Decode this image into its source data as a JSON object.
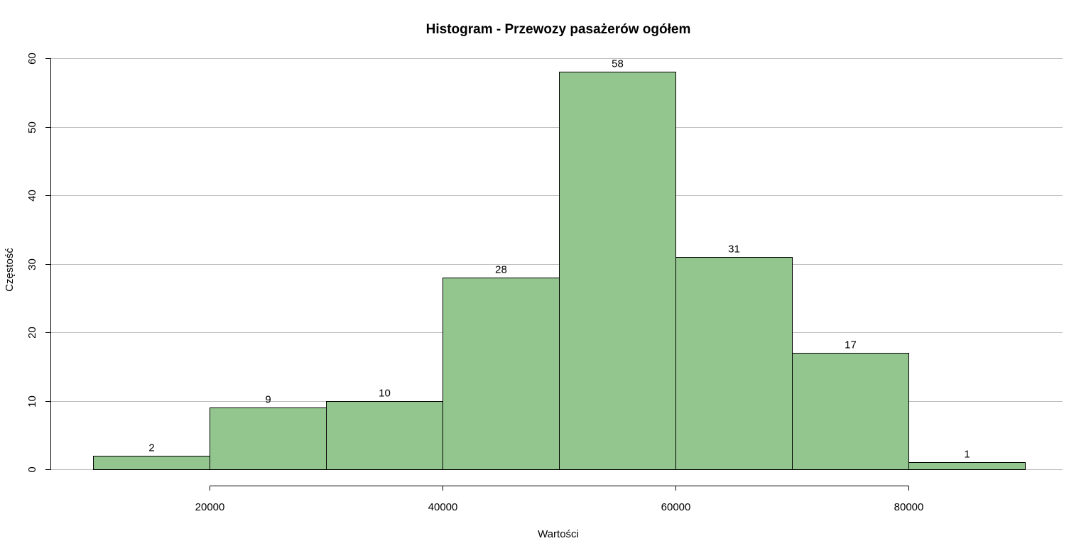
{
  "chart_data": {
    "type": "bar",
    "title": "Histogram - Przewozy pasażerów ogółem",
    "xlabel": "Wartości",
    "ylabel": "Częstość",
    "bins": [
      {
        "x0": 10000,
        "x1": 20000,
        "count": 2,
        "label": "2"
      },
      {
        "x0": 20000,
        "x1": 30000,
        "count": 9,
        "label": "9"
      },
      {
        "x0": 30000,
        "x1": 40000,
        "count": 10,
        "label": "10"
      },
      {
        "x0": 40000,
        "x1": 50000,
        "count": 28,
        "label": "28"
      },
      {
        "x0": 50000,
        "x1": 60000,
        "count": 58,
        "label": "58"
      },
      {
        "x0": 60000,
        "x1": 70000,
        "count": 31,
        "label": "31"
      },
      {
        "x0": 70000,
        "x1": 80000,
        "count": 17,
        "label": "17"
      },
      {
        "x0": 80000,
        "x1": 90000,
        "count": 1,
        "label": "1"
      }
    ],
    "x_ticks": [
      {
        "value": 20000,
        "label": "20000"
      },
      {
        "value": 40000,
        "label": "40000"
      },
      {
        "value": 60000,
        "label": "60000"
      },
      {
        "value": 80000,
        "label": "80000"
      }
    ],
    "y_ticks": [
      {
        "value": 0,
        "label": "0"
      },
      {
        "value": 10,
        "label": "10"
      },
      {
        "value": 20,
        "label": "20"
      },
      {
        "value": 30,
        "label": "30"
      },
      {
        "value": 40,
        "label": "40"
      },
      {
        "value": 50,
        "label": "50"
      },
      {
        "value": 60,
        "label": "60"
      }
    ],
    "xlim": [
      10000,
      90000
    ],
    "ylim": [
      0,
      60
    ],
    "horizontal_grid": true,
    "colors": {
      "bar_fill": "#93c58f",
      "bar_stroke": "#000000",
      "grid": "#bebebe",
      "axis": "#000000"
    }
  }
}
